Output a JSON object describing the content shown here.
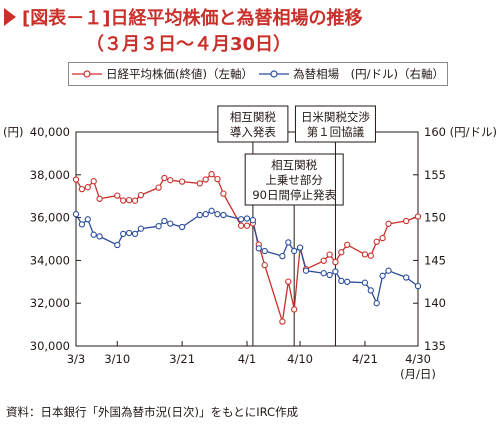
{
  "title": {
    "line1": "[図表－１]日経平均株価と為替相場の推移",
    "line2": "（３月３日～４月30日）"
  },
  "legend": {
    "nikkei": "日経平均株価(終値)（左軸）",
    "fx": "為替相場　(円/ドル)（右軸）"
  },
  "colors": {
    "nikkei": "#c9302a",
    "fx": "#2b4d9c",
    "title": "#c9302a"
  },
  "chart_data": {
    "type": "line",
    "left_axis": {
      "unit": "(円)",
      "min": 30000,
      "max": 40000,
      "ticks": [
        "30,000",
        "32,000",
        "34,000",
        "36,000",
        "38,000",
        "40,000"
      ]
    },
    "right_axis": {
      "unit": "160 (円/ドル)",
      "min": 135,
      "max": 160,
      "ticks": [
        "135",
        "140",
        "145",
        "150",
        "155"
      ]
    },
    "x_axis": {
      "ticks": [
        "3/3",
        "3/10",
        "3/21",
        "4/1",
        "4/10",
        "4/21",
        "4/30"
      ],
      "unit": "(月/日)"
    },
    "annotations": [
      {
        "label": [
          "相互関税",
          "導入発表"
        ],
        "date": "4/2"
      },
      {
        "label": [
          "相互関税",
          "上乗せ部分",
          "90日間停止発表"
        ],
        "date": "4/9"
      },
      {
        "label": [
          "日米関税交渉",
          "第１回協議"
        ],
        "date": "4/16"
      }
    ],
    "series": [
      {
        "name": "日経平均株価(終値)（左軸）",
        "axis": "left",
        "x": [
          "3/3",
          "3/4",
          "3/5",
          "3/6",
          "3/7",
          "3/10",
          "3/11",
          "3/12",
          "3/13",
          "3/14",
          "3/17",
          "3/18",
          "3/19",
          "3/21",
          "3/24",
          "3/25",
          "3/26",
          "3/27",
          "3/28",
          "3/31",
          "4/1",
          "4/2",
          "4/3",
          "4/4",
          "4/7",
          "4/8",
          "4/9",
          "4/10",
          "4/11",
          "4/14",
          "4/15",
          "4/16",
          "4/17",
          "4/18",
          "4/21",
          "4/22",
          "4/23",
          "4/24",
          "4/25",
          "4/28",
          "4/30"
        ],
        "values": [
          37780,
          37330,
          37420,
          37700,
          36880,
          37030,
          36800,
          36820,
          36790,
          37050,
          37400,
          37850,
          37750,
          37680,
          37600,
          37780,
          38030,
          37800,
          37120,
          35620,
          35620,
          35730,
          34740,
          33780,
          31140,
          33010,
          31710,
          34600,
          33590,
          33980,
          34270,
          33920,
          34380,
          34730,
          34280,
          34220,
          34870,
          35040,
          35710,
          35840,
          36050
        ]
      },
      {
        "name": "為替相場　(円/ドル)（右軸）",
        "axis": "right",
        "x": [
          "3/3",
          "3/4",
          "3/5",
          "3/6",
          "3/7",
          "3/10",
          "3/11",
          "3/12",
          "3/13",
          "3/14",
          "3/17",
          "3/18",
          "3/19",
          "3/21",
          "3/24",
          "3/25",
          "3/26",
          "3/27",
          "3/28",
          "3/31",
          "4/1",
          "4/2",
          "4/3",
          "4/4",
          "4/7",
          "4/8",
          "4/9",
          "4/10",
          "4/11",
          "4/14",
          "4/15",
          "4/16",
          "4/17",
          "4/18",
          "4/21",
          "4/22",
          "4/23",
          "4/24",
          "4/25",
          "4/28",
          "4/30"
        ],
        "values": [
          150.4,
          149.2,
          149.8,
          148.0,
          147.8,
          146.8,
          148.1,
          148.2,
          148.1,
          148.7,
          149.0,
          149.6,
          149.3,
          148.9,
          150.3,
          150.4,
          150.8,
          150.4,
          150.3,
          149.8,
          149.9,
          149.7,
          146.4,
          146.1,
          145.5,
          147.1,
          146.1,
          146.5,
          143.8,
          143.5,
          143.3,
          143.7,
          142.6,
          142.5,
          142.4,
          141.5,
          140.0,
          143.2,
          143.8,
          143.0,
          142.0
        ]
      }
    ],
    "grid": false,
    "legend_placement": "top"
  },
  "source_note": "資料：日本銀行「外国為替市況(日次)」をもとにIRC作成"
}
